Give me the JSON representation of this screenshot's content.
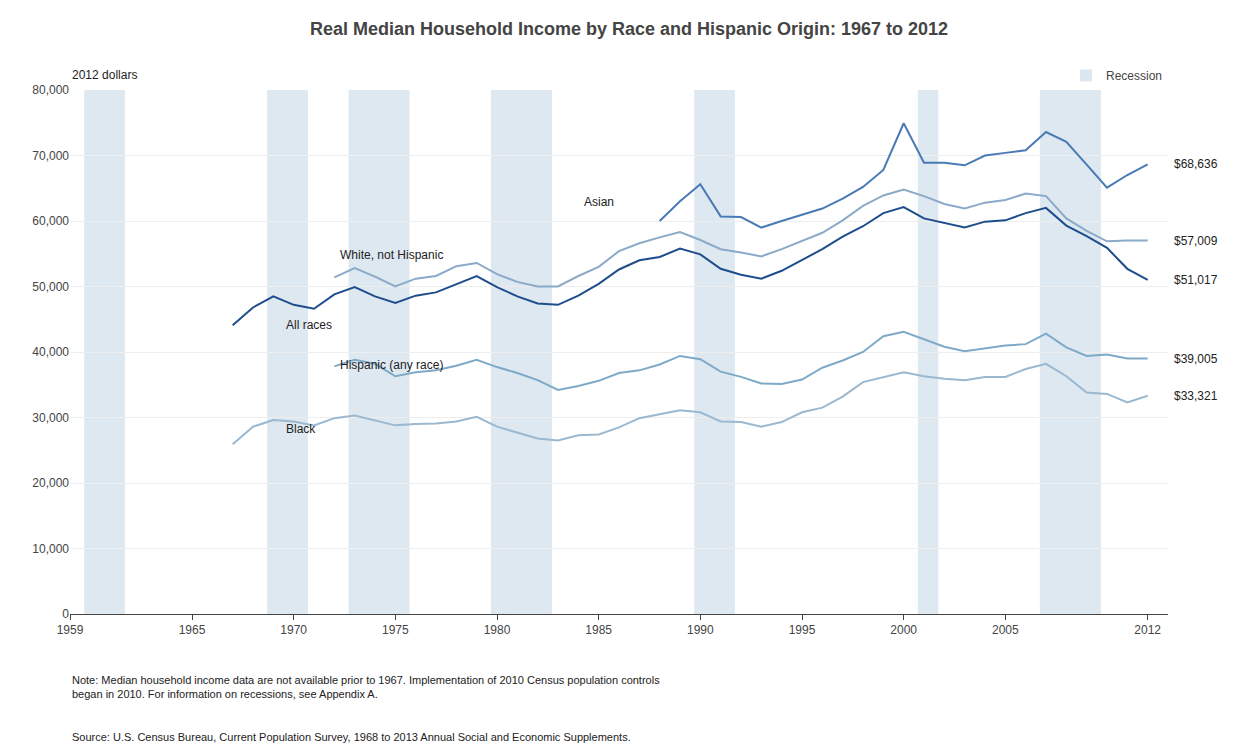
{
  "chart_data": {
    "type": "line",
    "title": "Real Median Household Income by Race and Hispanic Origin: 1967 to 2012",
    "ylabel": "2012 dollars",
    "xlim": [
      1959,
      2013
    ],
    "ylim": [
      0,
      80000
    ],
    "xticks": [
      1959,
      1965,
      1970,
      1975,
      1980,
      1985,
      1990,
      1995,
      2000,
      2005,
      2012
    ],
    "yticks": [
      0,
      {
        "value": 10000,
        "label": "10,000"
      },
      {
        "value": 20000,
        "label": "20,000"
      },
      {
        "value": 30000,
        "label": "30,000"
      },
      {
        "value": 40000,
        "label": "40,000"
      },
      {
        "value": 50000,
        "label": "50,000"
      },
      {
        "value": 60000,
        "label": "60,000"
      },
      {
        "value": 70000,
        "label": "70,000"
      },
      {
        "value": 80000,
        "label": "80,000"
      }
    ],
    "grid": "y",
    "legend": "top right",
    "recessions": {
      "name": "Recession",
      "color": "#c8d8e8",
      "periods": [
        [
          1960,
          1961
        ],
        [
          1969,
          1970
        ],
        [
          1973,
          1975
        ],
        [
          1980,
          1980
        ],
        [
          1981,
          1982
        ],
        [
          1990,
          1991
        ],
        [
          2001,
          2001
        ],
        [
          2007,
          2009
        ]
      ]
    },
    "series": [
      {
        "name": "Black",
        "color": "#9ab8d0",
        "x": [
          1967,
          1968,
          1969,
          1970,
          1971,
          1972,
          1973,
          1974,
          1975,
          1976,
          1977,
          1978,
          1979,
          1980,
          1981,
          1982,
          1983,
          1984,
          1985,
          1986,
          1987,
          1988,
          1989,
          1990,
          1991,
          1992,
          1993,
          1994,
          1995,
          1996,
          1997,
          1998,
          1999,
          2000,
          2001,
          2002,
          2003,
          2004,
          2005,
          2006,
          2007,
          2008,
          2009,
          2010,
          2011,
          2012
        ],
        "values": [
          25900,
          28600,
          29600,
          29400,
          28800,
          29900,
          30300,
          29500,
          28800,
          29000,
          29100,
          29400,
          30100,
          28600,
          27700,
          26800,
          26500,
          27300,
          27400,
          28500,
          29900,
          30500,
          31100,
          30800,
          29400,
          29300,
          28600,
          29300,
          30800,
          31500,
          33200,
          35400,
          36200,
          36900,
          36300,
          35900,
          35700,
          36200,
          36200,
          37400,
          38200,
          36300,
          33800,
          33600,
          32300,
          33321
        ]
      },
      {
        "name": "Hispanic (any race)",
        "color": "#7eaac8",
        "x": [
          1972,
          1973,
          1974,
          1975,
          1976,
          1977,
          1978,
          1979,
          1980,
          1981,
          1982,
          1983,
          1984,
          1985,
          1986,
          1987,
          1988,
          1989,
          1990,
          1991,
          1992,
          1993,
          1994,
          1995,
          1996,
          1997,
          1998,
          1999,
          2000,
          2001,
          2002,
          2003,
          2004,
          2005,
          2006,
          2007,
          2008,
          2009,
          2010,
          2011,
          2012
        ],
        "values": [
          37800,
          38800,
          38200,
          36300,
          36900,
          37200,
          37900,
          38800,
          37700,
          36800,
          35700,
          34200,
          34800,
          35600,
          36800,
          37200,
          38100,
          39400,
          38900,
          37000,
          36200,
          35200,
          35100,
          35800,
          37600,
          38700,
          40000,
          42400,
          43100,
          41900,
          40800,
          40100,
          40600,
          41000,
          41200,
          42800,
          40700,
          39400,
          39600,
          39005,
          39005
        ]
      },
      {
        "name": "White, not Hispanic",
        "color": "#8baac9",
        "x": [
          1972,
          1973,
          1974,
          1975,
          1976,
          1977,
          1978,
          1979,
          1980,
          1981,
          1982,
          1983,
          1984,
          1985,
          1986,
          1987,
          1988,
          1989,
          1990,
          1991,
          1992,
          1993,
          1994,
          1995,
          1996,
          1997,
          1998,
          1999,
          2000,
          2001,
          2002,
          2003,
          2004,
          2005,
          2006,
          2007,
          2008,
          2009,
          2010,
          2011,
          2012
        ],
        "values": [
          51400,
          52800,
          51500,
          50000,
          51200,
          51600,
          53100,
          53600,
          51900,
          50700,
          50000,
          50000,
          51600,
          53000,
          55400,
          56600,
          57500,
          58300,
          57100,
          55700,
          55200,
          54600,
          55700,
          57000,
          58200,
          60100,
          62300,
          63900,
          64800,
          63800,
          62600,
          61900,
          62800,
          63200,
          64200,
          63800,
          60400,
          58500,
          56900,
          57009,
          57009
        ]
      },
      {
        "name": "All races",
        "color": "#1e4d8c",
        "x": [
          1967,
          1968,
          1969,
          1970,
          1971,
          1972,
          1973,
          1974,
          1975,
          1976,
          1977,
          1978,
          1979,
          1980,
          1981,
          1982,
          1983,
          1984,
          1985,
          1986,
          1987,
          1988,
          1989,
          1990,
          1991,
          1992,
          1993,
          1994,
          1995,
          1996,
          1997,
          1998,
          1999,
          2000,
          2001,
          2002,
          2003,
          2004,
          2005,
          2006,
          2007,
          2008,
          2009,
          2010,
          2011,
          2012
        ],
        "values": [
          44100,
          46800,
          48500,
          47200,
          46600,
          48800,
          49900,
          48500,
          47500,
          48600,
          49100,
          50400,
          51600,
          49900,
          48500,
          47400,
          47200,
          48600,
          50400,
          52600,
          54000,
          54500,
          55800,
          54900,
          52700,
          51800,
          51200,
          52400,
          54000,
          55700,
          57600,
          59200,
          61200,
          62135,
          60400,
          59700,
          59000,
          59900,
          60100,
          61200,
          62000,
          59300,
          57700,
          55900,
          52700,
          51017
        ]
      },
      {
        "name": "Asian",
        "color": "#4a7ab5",
        "x": [
          1988,
          1989,
          1990,
          1991,
          1992,
          1993,
          1994,
          1995,
          1996,
          1997,
          1998,
          1999,
          2000,
          2001,
          2002,
          2003,
          2004,
          2005,
          2006,
          2007,
          2008,
          2009,
          2010,
          2011,
          2012
        ],
        "values": [
          60000,
          63000,
          65600,
          60700,
          60600,
          59000,
          60000,
          60900,
          61900,
          63400,
          65200,
          67800,
          74924,
          68900,
          68900,
          68500,
          70000,
          70400,
          70800,
          73578,
          72100,
          68600,
          65100,
          67022,
          68636
        ]
      }
    ],
    "annotations": [
      {
        "text": "Asian",
        "x": 1984.2,
        "y": 61500
      },
      {
        "text": "White, not Hispanic",
        "x": 1972.2,
        "y": 53500
      },
      {
        "text": "All races",
        "x": 1969.5,
        "y": 42800
      },
      {
        "text": "Hispanic (any race)",
        "x": 1972.2,
        "y": 36600
      },
      {
        "text": "Black",
        "x": 1969.5,
        "y": 26800
      },
      {
        "text": "$68,636",
        "y": 68636
      },
      {
        "text": "$57,009",
        "y": 57009
      },
      {
        "text": "$51,017",
        "y": 51017
      },
      {
        "text": "$39,005",
        "y": 39005
      },
      {
        "text": "$33,321",
        "y": 33321
      }
    ],
    "note": "Note: Median household income data are not available prior to 1967. Implementation of 2010 Census population controls\nbegan in 2010. For information on recessions, see Appendix A.",
    "source": "Source: U.S. Census Bureau, Current Population Survey, 1968 to 2013 Annual Social and Economic Supplements."
  }
}
